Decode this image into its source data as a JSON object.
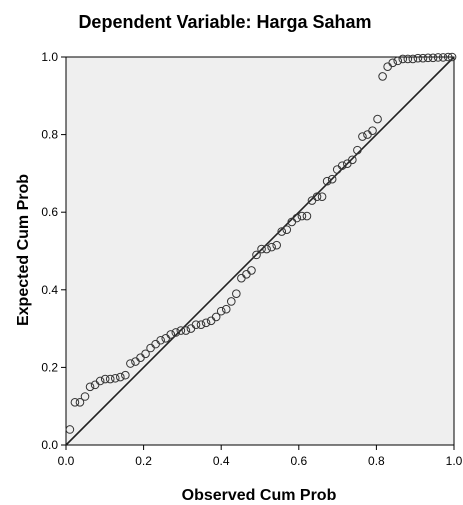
{
  "chart_data": {
    "type": "scatter",
    "title": "Dependent Variable: Harga Saham",
    "xlabel": "Observed Cum Prob",
    "ylabel": "Expected Cum Prob",
    "xlim": [
      0.0,
      1.0
    ],
    "ylim": [
      0.0,
      1.0
    ],
    "x_ticks": [
      "0.0",
      "0.2",
      "0.4",
      "0.6",
      "0.8",
      "1.0"
    ],
    "y_ticks": [
      "0.0",
      "0.2",
      "0.4",
      "0.6",
      "0.8",
      "1.0"
    ],
    "reference_line": {
      "from": [
        0.0,
        0.0
      ],
      "to": [
        1.0,
        1.0
      ]
    },
    "grid": false,
    "colors": {
      "plot_background": "#efefef",
      "marker": "#333333",
      "line": "#222222"
    },
    "points": {
      "x": [
        0.01,
        0.023,
        0.036,
        0.049,
        0.062,
        0.075,
        0.088,
        0.101,
        0.114,
        0.127,
        0.14,
        0.153,
        0.166,
        0.179,
        0.192,
        0.205,
        0.218,
        0.231,
        0.244,
        0.257,
        0.27,
        0.283,
        0.296,
        0.309,
        0.322,
        0.335,
        0.348,
        0.361,
        0.374,
        0.387,
        0.4,
        0.413,
        0.426,
        0.439,
        0.452,
        0.465,
        0.478,
        0.491,
        0.504,
        0.517,
        0.53,
        0.543,
        0.556,
        0.569,
        0.582,
        0.595,
        0.608,
        0.621,
        0.634,
        0.647,
        0.66,
        0.673,
        0.686,
        0.699,
        0.712,
        0.725,
        0.738,
        0.751,
        0.764,
        0.777,
        0.79,
        0.803,
        0.816,
        0.829,
        0.842,
        0.855,
        0.868,
        0.881,
        0.894,
        0.907,
        0.92,
        0.933,
        0.946,
        0.959,
        0.972,
        0.985,
        0.995
      ],
      "y": [
        0.04,
        0.11,
        0.11,
        0.125,
        0.15,
        0.155,
        0.165,
        0.17,
        0.17,
        0.172,
        0.175,
        0.18,
        0.21,
        0.215,
        0.225,
        0.235,
        0.25,
        0.26,
        0.27,
        0.275,
        0.285,
        0.29,
        0.295,
        0.295,
        0.3,
        0.31,
        0.31,
        0.315,
        0.32,
        0.33,
        0.345,
        0.35,
        0.37,
        0.39,
        0.43,
        0.44,
        0.45,
        0.49,
        0.505,
        0.505,
        0.51,
        0.515,
        0.55,
        0.555,
        0.575,
        0.585,
        0.59,
        0.59,
        0.63,
        0.64,
        0.64,
        0.68,
        0.685,
        0.71,
        0.72,
        0.725,
        0.735,
        0.76,
        0.795,
        0.8,
        0.81,
        0.84,
        0.95,
        0.975,
        0.985,
        0.99,
        0.995,
        0.995,
        0.995,
        0.997,
        0.997,
        0.998,
        0.998,
        0.999,
        0.999,
        1.0,
        1.0
      ]
    }
  }
}
